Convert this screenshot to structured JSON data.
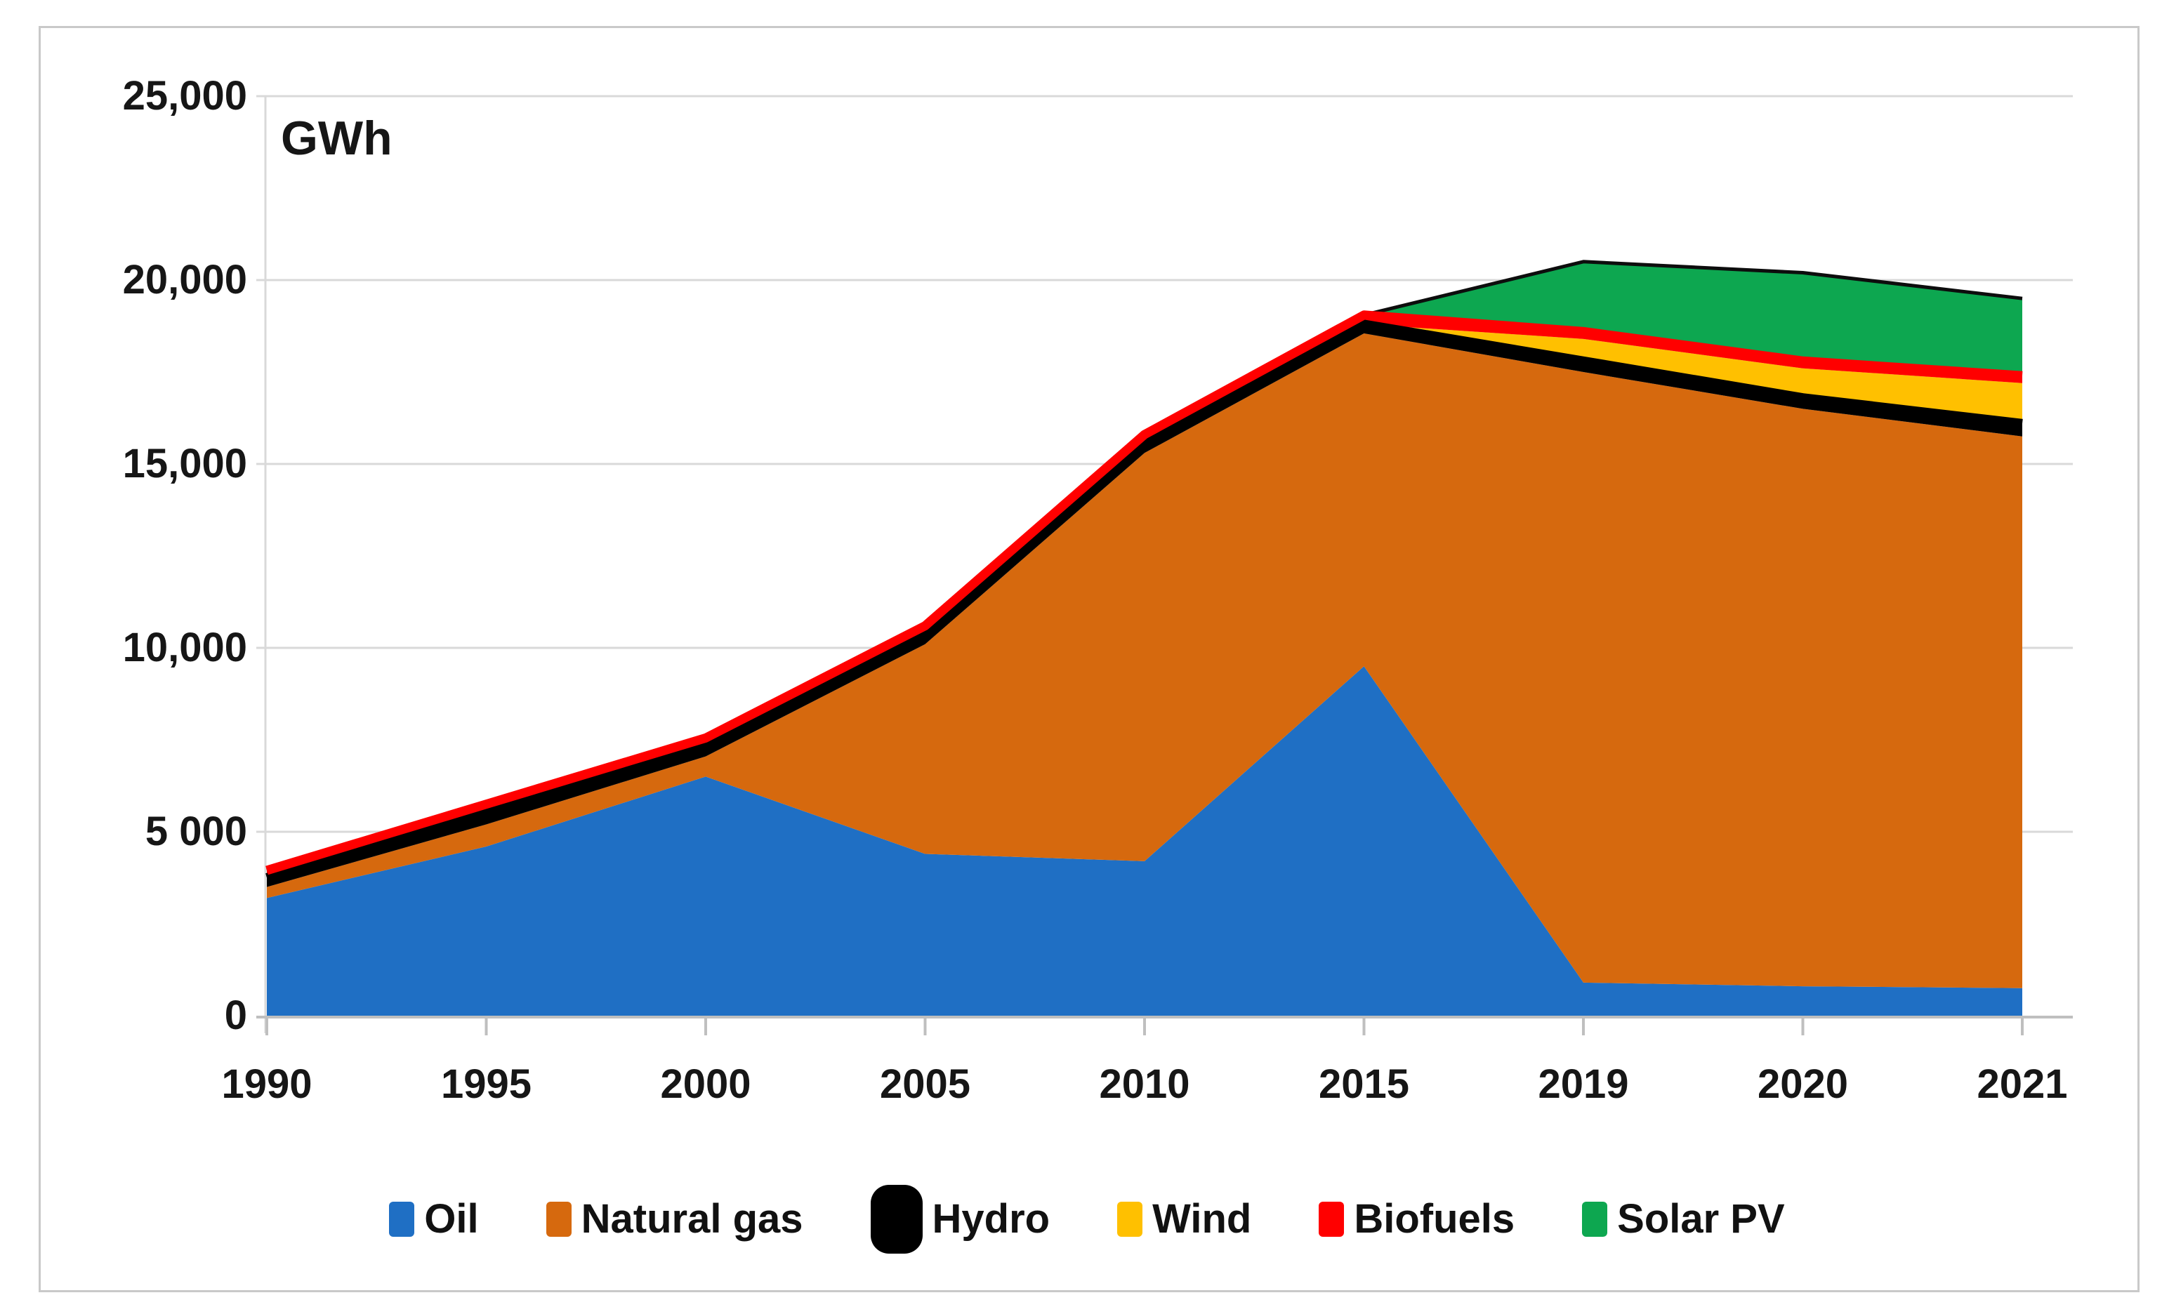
{
  "unit_label": "GWh",
  "chart_data": {
    "type": "area",
    "stacked": true,
    "title": "",
    "xlabel": "",
    "ylabel": "GWh",
    "ylim": [
      0,
      25000
    ],
    "grid": true,
    "legend_position": "bottom",
    "categories": [
      "1990",
      "1995",
      "2000",
      "2005",
      "2010",
      "2015",
      "2019",
      "2020",
      "2021"
    ],
    "y_ticks": [
      {
        "label": "0",
        "value": 0
      },
      {
        "label": "5 000",
        "value": 5000
      },
      {
        "label": "10,000",
        "value": 10000
      },
      {
        "label": "15,000",
        "value": 15000
      },
      {
        "label": "20,000",
        "value": 20000
      },
      {
        "label": "25,000",
        "value": 25000
      }
    ],
    "series": [
      {
        "name": "Oil",
        "color": "#1f6fc4",
        "values": [
          3200,
          4600,
          6500,
          4400,
          4200,
          9500,
          900,
          800,
          750
        ]
      },
      {
        "name": "Natural gas",
        "color": "#d6690e",
        "values": [
          300,
          600,
          550,
          5700,
          11100,
          9050,
          16600,
          15700,
          15000
        ]
      },
      {
        "name": "Hydro",
        "color": "#000000",
        "values": [
          250,
          300,
          250,
          250,
          250,
          250,
          300,
          300,
          350
        ]
      },
      {
        "name": "Wind",
        "color": "#ffc000",
        "values": [
          0,
          0,
          0,
          0,
          0,
          0,
          600,
          800,
          1100
        ]
      },
      {
        "name": "Biofuels",
        "color": "#ff0000",
        "values": [
          200,
          250,
          250,
          250,
          250,
          250,
          200,
          200,
          200
        ]
      },
      {
        "name": "Solar PV",
        "color": "#0da750",
        "values": [
          0,
          0,
          0,
          0,
          0,
          0,
          1900,
          2400,
          2100
        ]
      }
    ],
    "totals": [
      3950,
      5750,
      7550,
      10600,
      15800,
      19050,
      20500,
      20200,
      19500
    ]
  },
  "legend": {
    "items": [
      {
        "label": "Oil",
        "color": "#1f6fc4",
        "big": false
      },
      {
        "label": "Natural gas",
        "color": "#d6690e",
        "big": false
      },
      {
        "label": "Hydro",
        "color": "#000000",
        "big": true
      },
      {
        "label": "Wind",
        "color": "#ffc000",
        "big": false
      },
      {
        "label": "Biofuels",
        "color": "#ff0000",
        "big": false
      },
      {
        "label": "Solar PV",
        "color": "#0da750",
        "big": false
      }
    ]
  },
  "style": {
    "gridline_color": "#d9d9d9",
    "axis_color": "#bfbfbf",
    "text_color": "#161616"
  }
}
